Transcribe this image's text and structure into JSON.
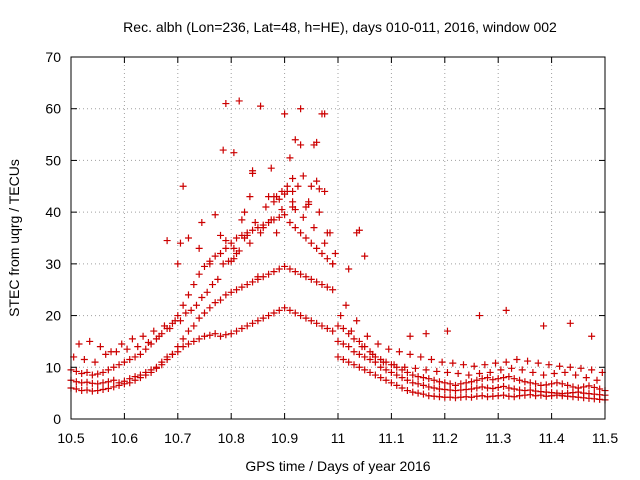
{
  "chart_data": {
    "type": "scatter",
    "title": "Rec. albh (Lon=236, Lat=48, h=HE), days 010-011, 2016, window 002",
    "xlabel": "GPS time / Days of year 2016",
    "ylabel": "STEC from uqrg / TECUs",
    "xlim": [
      10.5,
      11.5
    ],
    "ylim": [
      0,
      70
    ],
    "x_ticks": [
      10.5,
      10.6,
      10.7,
      10.8,
      10.9,
      11.0,
      11.1,
      11.2,
      11.3,
      11.4,
      11.5
    ],
    "x_tick_labels": [
      "10.5",
      "10.6",
      "10.7",
      "10.8",
      "10.9",
      "11",
      "11.1",
      "11.2",
      "11.3",
      "11.4",
      "11.5"
    ],
    "y_ticks": [
      0,
      10,
      20,
      30,
      40,
      50,
      60,
      70
    ],
    "y_tick_labels": [
      "0",
      "10",
      "20",
      "30",
      "40",
      "50",
      "60",
      "70"
    ],
    "grid": true,
    "marker": "+",
    "series": [
      {
        "name": "STEC",
        "color": "#cc0000",
        "x": [
          10.5,
          10.51,
          10.52,
          10.53,
          10.54,
          10.55,
          10.56,
          10.57,
          10.58,
          10.59,
          10.6,
          10.61,
          10.62,
          10.63,
          10.64,
          10.65,
          10.66,
          10.67,
          10.68,
          10.69,
          10.7,
          10.71,
          10.72,
          10.73,
          10.74,
          10.75,
          10.76,
          10.77,
          10.78,
          10.79,
          10.8,
          10.81,
          10.82,
          10.83,
          10.84,
          10.85,
          10.86,
          10.87,
          10.88,
          10.89,
          10.9,
          10.91,
          10.92,
          10.93,
          10.94,
          10.95,
          10.96,
          10.97,
          10.98,
          10.99,
          11.0,
          11.01,
          11.02,
          11.03,
          11.04,
          11.05,
          11.06,
          11.07,
          11.08,
          11.09,
          11.1,
          11.11,
          11.12,
          11.13,
          11.14,
          11.15,
          11.16,
          11.17,
          11.18,
          11.19,
          11.2,
          11.21,
          11.22,
          11.23,
          11.24,
          11.25,
          11.26,
          11.27,
          11.28,
          11.29,
          11.3,
          11.31,
          11.32,
          11.33,
          11.34,
          11.35,
          11.36,
          11.37,
          11.38,
          11.39,
          11.4,
          11.41,
          11.42,
          11.43,
          11.44,
          11.45,
          11.46,
          11.47,
          11.48,
          11.49,
          11.5,
          10.5,
          10.51,
          10.52,
          10.53,
          10.54,
          10.55,
          10.56,
          10.57,
          10.58,
          10.59,
          10.6,
          10.61,
          10.62,
          10.63,
          10.64,
          10.65,
          10.66,
          10.67,
          10.68,
          10.69,
          10.7,
          10.71,
          10.72,
          10.73,
          10.74,
          10.75,
          10.76,
          10.77,
          10.78,
          10.79,
          10.8,
          10.81,
          10.82,
          10.83,
          10.84,
          10.85,
          10.86,
          10.87,
          10.88,
          10.89,
          10.9,
          10.91,
          10.92,
          10.93,
          10.94,
          10.95,
          10.96,
          10.97,
          10.98,
          10.99,
          11.0,
          11.01,
          11.02,
          11.03,
          11.04,
          11.05,
          11.06,
          11.07,
          11.08,
          11.09,
          11.1,
          11.11,
          11.12,
          11.13,
          11.14,
          11.15,
          11.16,
          11.17,
          11.18,
          11.19,
          11.2,
          11.21,
          11.22,
          11.23,
          11.24,
          11.25,
          11.26,
          11.27,
          11.28,
          11.29,
          11.3,
          11.31,
          11.32,
          11.33,
          11.34,
          11.35,
          11.36,
          11.37,
          11.38,
          11.39,
          11.4,
          11.41,
          11.42,
          11.43,
          11.44,
          11.45,
          11.46,
          11.47,
          11.48,
          11.49,
          11.5,
          10.5,
          10.51,
          10.52,
          10.53,
          10.54,
          10.55,
          10.56,
          10.57,
          10.58,
          10.59,
          10.6,
          10.61,
          10.62,
          10.63,
          10.64,
          10.65,
          10.66,
          10.67,
          10.68,
          10.69,
          10.7,
          10.71,
          10.72,
          10.73,
          10.74,
          10.75,
          10.76,
          10.77,
          10.78,
          10.79,
          10.8,
          10.81,
          10.82,
          10.83,
          10.84,
          10.85,
          10.86,
          10.87,
          10.88,
          10.89,
          10.9,
          10.91,
          10.92,
          10.93,
          10.94,
          10.95,
          10.96,
          10.97,
          10.98,
          10.99,
          11.0,
          11.01,
          11.02,
          11.03,
          11.04,
          11.05,
          11.06,
          11.07,
          11.08,
          11.09,
          11.1,
          11.11,
          11.12,
          11.13,
          11.14,
          11.15,
          11.16,
          11.17,
          11.18,
          11.19,
          11.2,
          11.21,
          11.22,
          11.23,
          11.24,
          11.25,
          11.26,
          11.27,
          11.28,
          11.29,
          11.3,
          11.31,
          11.32,
          11.33,
          11.34,
          11.35,
          11.36,
          11.37,
          11.38,
          11.39,
          11.4,
          11.41,
          11.42,
          11.43,
          11.44,
          11.45,
          11.46,
          11.47,
          11.48,
          11.49,
          11.5,
          10.505,
          10.525,
          10.545,
          10.565,
          10.585,
          10.605,
          10.625,
          10.645,
          10.665,
          10.685,
          10.705,
          10.725,
          10.745,
          10.765,
          10.785,
          10.805,
          10.825,
          10.845,
          10.865,
          10.885,
          10.905,
          10.925,
          10.945,
          10.965,
          10.985,
          11.005,
          11.025,
          11.045,
          11.065,
          11.085,
          11.105,
          11.125,
          11.145,
          11.165,
          11.185,
          11.205,
          11.225,
          11.245,
          11.265,
          11.285,
          11.305,
          11.325,
          11.345,
          11.365,
          11.385,
          11.405,
          11.425,
          11.445,
          11.465,
          11.485,
          10.515,
          10.535,
          10.555,
          10.575,
          10.595,
          10.615,
          10.635,
          10.655,
          10.675,
          10.695,
          10.715,
          10.735,
          10.755,
          10.775,
          10.795,
          10.815,
          10.835,
          10.855,
          10.875,
          10.895,
          10.915,
          10.935,
          10.955,
          10.975,
          10.995,
          11.015,
          11.035,
          11.055,
          11.075,
          11.095,
          11.115,
          11.135,
          11.155,
          11.175,
          11.195,
          11.215,
          11.235,
          11.255,
          11.275,
          11.295,
          11.315,
          11.335,
          11.355,
          11.375,
          11.395,
          11.415,
          11.435,
          11.455,
          11.475,
          11.495,
          10.68,
          10.7,
          10.72,
          10.74,
          10.76,
          10.78,
          10.79,
          10.8,
          10.81,
          10.82,
          10.83,
          10.84,
          10.85,
          10.86,
          10.87,
          10.88,
          10.89,
          10.9,
          10.905,
          10.91,
          10.915,
          10.92,
          10.93,
          10.94,
          10.95,
          10.96,
          10.97,
          10.975,
          10.98,
          10.99,
          11.02,
          11.04,
          11.05,
          10.79,
          10.815,
          10.855,
          10.9,
          10.93,
          10.975,
          10.785,
          10.805,
          10.915,
          10.955,
          10.835,
          10.875,
          10.935,
          10.945,
          10.96,
          10.915,
          10.895,
          10.825,
          10.71,
          10.77,
          10.84,
          10.88,
          10.92,
          10.965,
          10.705,
          10.745,
          10.805,
          10.885,
          11.035,
          11.265,
          11.315,
          11.385,
          11.435,
          11.475,
          11.205,
          11.165,
          11.135
        ],
        "y": [
          7.5,
          7.2,
          7.0,
          7.1,
          6.9,
          6.8,
          7.0,
          7.2,
          7.5,
          7.0,
          7.3,
          7.8,
          8.2,
          8.5,
          9.0,
          9.5,
          10.0,
          11.0,
          12.0,
          12.5,
          13.0,
          14.0,
          14.5,
          15.0,
          15.5,
          16.0,
          16.2,
          16.5,
          16.0,
          16.3,
          16.5,
          17.0,
          17.5,
          18.0,
          18.5,
          19.0,
          19.5,
          20.0,
          20.5,
          21.0,
          21.5,
          21.0,
          20.5,
          20.0,
          19.5,
          19.0,
          18.5,
          18.0,
          17.5,
          17.0,
          12.0,
          11.5,
          11.0,
          10.5,
          10.0,
          9.5,
          9.0,
          8.5,
          8.0,
          7.5,
          7.0,
          6.5,
          6.0,
          5.5,
          5.2,
          5.0,
          4.8,
          4.5,
          4.4,
          4.3,
          4.2,
          4.2,
          4.1,
          4.2,
          4.3,
          4.2,
          4.4,
          4.5,
          4.3,
          4.4,
          4.5,
          4.6,
          4.4,
          4.3,
          4.5,
          4.6,
          4.7,
          4.5,
          4.6,
          4.4,
          4.5,
          4.6,
          4.5,
          4.4,
          4.3,
          4.2,
          4.1,
          4.0,
          3.9,
          3.8,
          3.7,
          6.0,
          5.8,
          5.5,
          5.6,
          5.4,
          5.5,
          5.7,
          5.9,
          6.2,
          6.5,
          6.8,
          7.0,
          7.5,
          8.0,
          8.5,
          9.0,
          9.8,
          10.5,
          11.5,
          12.5,
          14.0,
          15.5,
          17.0,
          18.0,
          19.5,
          20.5,
          21.5,
          22.5,
          23.0,
          24.0,
          24.5,
          25.0,
          25.5,
          26.0,
          26.5,
          27.0,
          27.5,
          28.0,
          28.5,
          29.0,
          29.5,
          29.0,
          28.5,
          28.0,
          27.5,
          27.0,
          26.5,
          26.0,
          25.5,
          25.0,
          15.0,
          14.5,
          14.0,
          13.0,
          12.5,
          12.0,
          11.5,
          11.0,
          10.0,
          9.5,
          9.0,
          8.5,
          8.0,
          7.5,
          7.0,
          6.8,
          6.5,
          6.2,
          6.0,
          5.8,
          5.7,
          5.6,
          5.5,
          5.6,
          5.7,
          5.8,
          6.0,
          6.2,
          6.0,
          5.9,
          6.1,
          6.3,
          6.0,
          5.8,
          5.6,
          5.5,
          5.6,
          5.4,
          5.3,
          5.2,
          5.1,
          5.0,
          4.9,
          5.0,
          5.1,
          5.2,
          5.0,
          4.9,
          4.8,
          4.7,
          4.6,
          9.5,
          9.2,
          8.8,
          9.0,
          8.5,
          8.7,
          9.0,
          9.5,
          10.0,
          10.5,
          11.0,
          11.5,
          12.0,
          12.5,
          13.5,
          14.5,
          15.5,
          16.5,
          17.5,
          18.5,
          20.0,
          22.0,
          24.0,
          26.0,
          28.0,
          29.5,
          30.5,
          31.5,
          32.0,
          33.0,
          34.0,
          35.0,
          35.5,
          36.0,
          36.5,
          37.0,
          37.5,
          38.0,
          38.5,
          39.0,
          39.5,
          38.0,
          37.0,
          36.0,
          35.0,
          34.0,
          33.0,
          32.0,
          31.0,
          30.0,
          18.0,
          17.5,
          16.5,
          15.5,
          15.0,
          14.0,
          13.0,
          12.0,
          11.5,
          11.0,
          10.5,
          10.0,
          9.5,
          9.0,
          8.5,
          8.2,
          8.0,
          7.8,
          7.5,
          7.2,
          7.0,
          6.8,
          6.5,
          6.8,
          7.0,
          7.2,
          7.5,
          7.8,
          8.0,
          7.6,
          7.8,
          8.0,
          8.2,
          7.8,
          7.5,
          7.2,
          7.0,
          6.8,
          6.5,
          6.6,
          6.8,
          7.0,
          6.8,
          6.5,
          6.2,
          6.0,
          6.2,
          6.4,
          6.1,
          5.8,
          5.5,
          12.0,
          11.5,
          11.0,
          12.5,
          13.0,
          13.5,
          14.0,
          14.8,
          16.0,
          17.5,
          19.0,
          21.0,
          23.5,
          26.0,
          30.0,
          33.0,
          35.0,
          38.0,
          41.0,
          43.0,
          44.0,
          45.0,
          42.0,
          40.0,
          36.0,
          20.0,
          17.0,
          14.0,
          12.5,
          11.0,
          10.5,
          10.0,
          9.8,
          9.5,
          9.2,
          9.0,
          8.8,
          8.5,
          8.8,
          9.0,
          9.5,
          9.8,
          9.5,
          9.0,
          8.5,
          8.8,
          9.0,
          8.5,
          8.0,
          7.5,
          14.5,
          15.0,
          14.0,
          13.0,
          14.5,
          15.5,
          16.0,
          17.0,
          18.0,
          19.0,
          20.5,
          22.0,
          24.5,
          27.0,
          30.5,
          32.5,
          34.0,
          36.0,
          38.5,
          40.5,
          41.0,
          39.0,
          37.0,
          34.0,
          32.0,
          22.0,
          19.0,
          16.0,
          14.5,
          13.5,
          13.0,
          12.5,
          12.0,
          11.5,
          11.0,
          10.8,
          10.5,
          10.2,
          10.5,
          10.8,
          11.0,
          11.5,
          11.2,
          10.8,
          10.5,
          10.2,
          10.0,
          9.8,
          9.5,
          9.0,
          34.5,
          30.0,
          35.0,
          33.0,
          30.0,
          35.5,
          34.5,
          30.5,
          32.0,
          38.5,
          35.5,
          48.0,
          27.5,
          37.0,
          43.0,
          42.0,
          42.5,
          43.5,
          45.0,
          50.5,
          46.5,
          54.0,
          53.0,
          41.0,
          45.0,
          53.5,
          59.0,
          44.0,
          36.0,
          30.0,
          29.0,
          36.5,
          31.5,
          61.0,
          61.5,
          60.5,
          59.0,
          60.0,
          59.0,
          52.0,
          51.5,
          44.0,
          53.0,
          43.0,
          48.5,
          47.0,
          41.5,
          46.0,
          42.0,
          44.0,
          40.0,
          45.0,
          39.5,
          47.5,
          43.0,
          40.5,
          44.5,
          34.0,
          38.0,
          31.0,
          36.0,
          36.0,
          20.0,
          21.0,
          18.0,
          18.5,
          16.0,
          17.0,
          16.5,
          16.0
        ]
      }
    ]
  }
}
